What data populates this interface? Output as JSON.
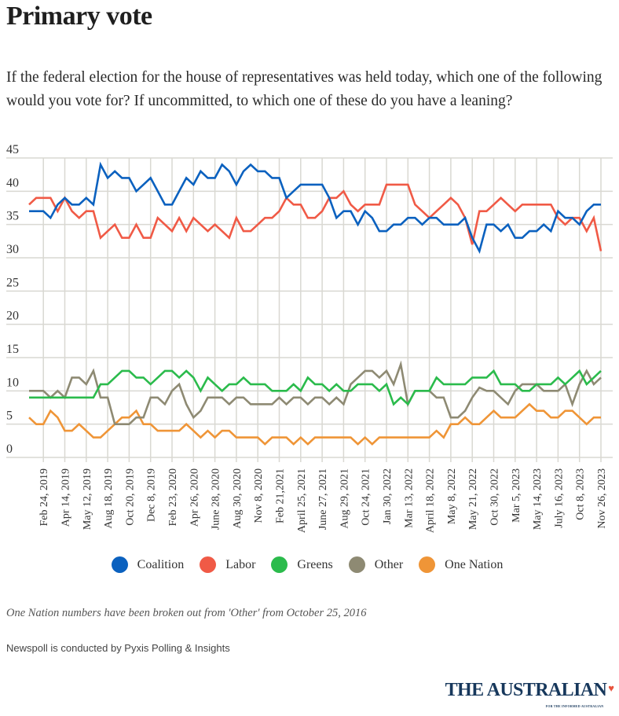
{
  "header": {
    "title": "Primary vote",
    "subtitle": "If the federal election for the house of representatives was held today, which one of the following would you vote for? If uncommitted, to which one of these do you have a leaning?"
  },
  "chart_data": {
    "type": "line",
    "title": "Primary vote",
    "xlabel": "",
    "ylabel": "",
    "ylim": [
      0,
      45
    ],
    "yticks": [
      0,
      5,
      10,
      15,
      20,
      25,
      30,
      35,
      40,
      45
    ],
    "grid": true,
    "legend_position": "bottom",
    "x_tick_labels": [
      {
        "index": 2,
        "label": "Feb 24, 2019"
      },
      {
        "index": 5,
        "label": "Apr 14, 2019"
      },
      {
        "index": 8,
        "label": "May 12, 2019"
      },
      {
        "index": 11,
        "label": "Aug 18, 2019"
      },
      {
        "index": 14,
        "label": "Oct 20, 2019"
      },
      {
        "index": 17,
        "label": "Dec 8, 2019"
      },
      {
        "index": 20,
        "label": "Feb 23, 2020"
      },
      {
        "index": 23,
        "label": "Apr 26, 2020"
      },
      {
        "index": 26,
        "label": "June 28, 2020"
      },
      {
        "index": 29,
        "label": "Aug 30, 2020"
      },
      {
        "index": 32,
        "label": "Nov 8, 2020"
      },
      {
        "index": 35,
        "label": "Feb 21,2021"
      },
      {
        "index": 38,
        "label": "April 25, 2021"
      },
      {
        "index": 41,
        "label": "June 27, 2021"
      },
      {
        "index": 44,
        "label": "Aug 29, 2021"
      },
      {
        "index": 47,
        "label": "Oct 24, 2021"
      },
      {
        "index": 50,
        "label": "Jan 30, 2022"
      },
      {
        "index": 53,
        "label": "Mar 13, 2022"
      },
      {
        "index": 56,
        "label": "April 18, 2022"
      },
      {
        "index": 59,
        "label": "May 8, 2022"
      },
      {
        "index": 62,
        "label": "May 21, 2022"
      },
      {
        "index": 65,
        "label": "Oct 30, 2022"
      },
      {
        "index": 68,
        "label": "Mar 5, 2023"
      },
      {
        "index": 71,
        "label": "May 14, 2023"
      },
      {
        "index": 74,
        "label": "July 16, 2023"
      },
      {
        "index": 77,
        "label": "Oct 8, 2023"
      },
      {
        "index": 80,
        "label": "Nov 26, 2023"
      }
    ],
    "series": [
      {
        "name": "Coalition",
        "color": "#0b61bf",
        "values": [
          37,
          37,
          37,
          36,
          38,
          39,
          38,
          38,
          39,
          38,
          44,
          42,
          43,
          42,
          42,
          40,
          41,
          42,
          40,
          38,
          38,
          40,
          42,
          41,
          43,
          42,
          42,
          44,
          43,
          41,
          43,
          44,
          43,
          43,
          42,
          42,
          39,
          40,
          41,
          41,
          41,
          41,
          39,
          36,
          37,
          37,
          35,
          37,
          36,
          34,
          34,
          35,
          35,
          36,
          36,
          35,
          36,
          36,
          35,
          35,
          35,
          36,
          33,
          31,
          35,
          35,
          34,
          35,
          33,
          33,
          34,
          34,
          35,
          34,
          37,
          36,
          36,
          35,
          37,
          38,
          38
        ]
      },
      {
        "name": "Labor",
        "color": "#f05a46",
        "values": [
          38,
          39,
          39,
          39,
          37,
          39,
          37,
          36,
          37,
          37,
          33,
          34,
          35,
          33,
          33,
          35,
          33,
          33,
          36,
          35,
          34,
          36,
          34,
          36,
          35,
          34,
          35,
          34,
          33,
          36,
          34,
          34,
          35,
          36,
          36,
          37,
          39,
          38,
          38,
          36,
          36,
          37,
          39,
          39,
          40,
          38,
          37,
          38,
          38,
          38,
          41,
          41,
          41,
          41,
          38,
          37,
          36,
          37,
          38,
          39,
          38,
          36,
          32,
          37,
          37,
          38,
          39,
          38,
          37,
          38,
          38,
          38,
          38,
          38,
          36,
          35,
          36,
          36,
          34,
          36,
          31
        ]
      },
      {
        "name": "Greens",
        "color": "#2bbb4c",
        "values": [
          9,
          9,
          9,
          9,
          9,
          9,
          9,
          9,
          9,
          9,
          11,
          11,
          12,
          13,
          13,
          12,
          12,
          11,
          12,
          13,
          13,
          12,
          13,
          12,
          10,
          12,
          11,
          10,
          11,
          11,
          12,
          11,
          11,
          11,
          10,
          10,
          10,
          11,
          10,
          12,
          11,
          11,
          10,
          11,
          10,
          10,
          11,
          11,
          11,
          10,
          11,
          8,
          9,
          8,
          10,
          10,
          10,
          12,
          11,
          11,
          11,
          11,
          12,
          12,
          12,
          13,
          11,
          11,
          11,
          10,
          10,
          11,
          11,
          11,
          12,
          11,
          12,
          13,
          11,
          12,
          13
        ]
      },
      {
        "name": "Other",
        "color": "#8e8a73",
        "values": [
          10,
          10,
          10,
          9,
          10,
          9,
          12,
          12,
          11,
          13,
          9,
          9,
          5,
          5,
          5,
          6,
          6,
          9,
          9,
          8,
          10,
          11,
          8,
          6,
          7,
          9,
          9,
          9,
          8,
          9,
          9,
          8,
          8,
          8,
          8,
          9,
          8,
          9,
          9,
          8,
          9,
          9,
          8,
          9,
          8,
          11,
          12,
          13,
          13,
          12,
          13,
          11,
          14,
          8,
          10,
          10,
          10,
          9,
          9,
          6,
          6,
          7,
          9,
          10.5,
          10,
          10,
          9,
          8,
          10,
          11,
          11,
          11,
          10,
          10,
          10,
          11,
          8,
          11,
          13,
          11,
          12
        ]
      },
      {
        "name": "One Nation",
        "color": "#ef9537",
        "values": [
          6,
          5,
          5,
          7,
          6,
          4,
          4,
          5,
          4,
          3,
          3,
          4,
          5,
          6,
          6,
          7,
          5,
          5,
          4,
          4,
          4,
          4,
          5,
          4,
          3,
          4,
          3,
          4,
          4,
          3,
          3,
          3,
          3,
          2,
          3,
          3,
          3,
          2,
          3,
          2,
          3,
          3,
          3,
          3,
          3,
          3,
          2,
          3,
          2,
          3,
          3,
          3,
          3,
          3,
          3,
          3,
          3,
          4,
          3,
          5,
          5,
          6,
          5,
          5,
          6,
          7,
          6,
          6,
          6,
          7,
          8,
          7,
          7,
          6,
          6,
          7,
          7,
          6,
          5,
          6,
          6
        ]
      }
    ]
  },
  "legend": {
    "items": [
      {
        "label": "Coalition",
        "color": "#0b61bf"
      },
      {
        "label": "Labor",
        "color": "#f05a46"
      },
      {
        "label": "Greens",
        "color": "#2bbb4c"
      },
      {
        "label": "Other",
        "color": "#8e8a73"
      },
      {
        "label": "One Nation",
        "color": "#ef9537"
      }
    ]
  },
  "footer": {
    "note": "One Nation numbers have been broken out from 'Other' from October 25, 2016",
    "source": "Newspoll is conducted by Pyxis Polling & Insights",
    "logo_text": "THE AUSTRALIAN",
    "logo_tagline": "FOR THE INFORMED AUSTRALIAN",
    "logo_icon": "australia-map-icon"
  }
}
